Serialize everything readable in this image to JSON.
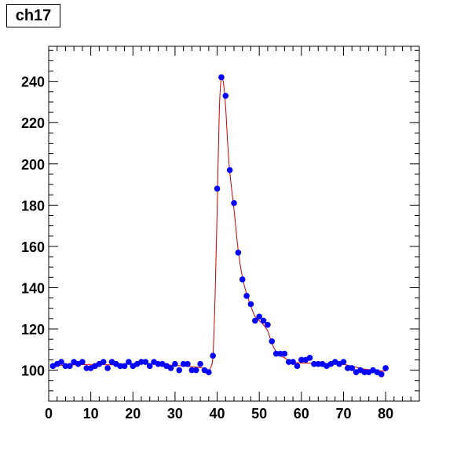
{
  "title": "ch17",
  "chart_data": {
    "type": "scatter",
    "title": "ch17",
    "xlabel": "",
    "ylabel": "",
    "xlim": [
      0,
      88
    ],
    "ylim": [
      85,
      257
    ],
    "x_major_ticks": [
      0,
      10,
      20,
      30,
      40,
      50,
      60,
      70,
      80
    ],
    "y_major_ticks": [
      100,
      120,
      140,
      160,
      180,
      200,
      220,
      240
    ],
    "grid": false,
    "legend": "none",
    "colors": {
      "points": "#0000ff",
      "fit": "#cc0000"
    },
    "series": [
      {
        "type": "points",
        "x": [
          1,
          2,
          3,
          4,
          5,
          6,
          7,
          8,
          9,
          10,
          11,
          12,
          13,
          14,
          15,
          16,
          17,
          18,
          19,
          20,
          21,
          22,
          23,
          24,
          25,
          26,
          27,
          28,
          29,
          30,
          31,
          32,
          33,
          34,
          35,
          36,
          37,
          38,
          39,
          40,
          41,
          42,
          43,
          44,
          45,
          46,
          47,
          48,
          49,
          50,
          51,
          52,
          53,
          54,
          55,
          56,
          57,
          58,
          59,
          60,
          61,
          62,
          63,
          64,
          65,
          66,
          67,
          68,
          69,
          70,
          71,
          72,
          73,
          74,
          75,
          76,
          77,
          78,
          79,
          80
        ],
        "y": [
          102,
          103,
          104,
          102,
          102,
          104,
          103,
          104,
          101,
          101,
          102,
          103,
          104,
          101,
          104,
          103,
          102,
          102,
          104,
          102,
          103,
          104,
          104,
          102,
          104,
          103,
          103,
          102,
          101,
          103,
          100,
          103,
          103,
          100,
          100,
          103,
          100,
          99,
          107,
          188,
          242,
          233,
          197,
          181,
          157,
          144,
          136,
          132,
          124,
          126,
          124,
          122,
          114,
          108,
          108,
          108,
          104,
          104,
          102,
          105,
          105,
          106,
          103,
          103,
          103,
          102,
          103,
          104,
          103,
          104,
          101,
          101,
          99,
          100,
          99,
          99,
          100,
          99,
          98,
          101
        ]
      },
      {
        "type": "fit",
        "x": [
          1,
          5,
          10,
          15,
          20,
          25,
          30,
          35,
          37,
          38,
          38.5,
          39,
          39.5,
          40,
          40.5,
          41,
          41.5,
          42,
          42.5,
          43,
          44,
          45,
          46,
          47,
          48,
          49,
          50,
          51,
          52,
          53,
          54,
          55,
          56,
          57,
          58,
          60,
          65,
          70,
          75,
          80
        ],
        "y": [
          102,
          102.5,
          102.8,
          102.6,
          103,
          103,
          102.3,
          101.5,
          100.8,
          100.2,
          101.5,
          107,
          135,
          178,
          225,
          242,
          239,
          228,
          210,
          196,
          178,
          158,
          145,
          137,
          131,
          126,
          124,
          122,
          119,
          113,
          109,
          107,
          106,
          104.5,
          103.8,
          103.5,
          103.2,
          102.8,
          100.5,
          99.5
        ]
      }
    ]
  }
}
